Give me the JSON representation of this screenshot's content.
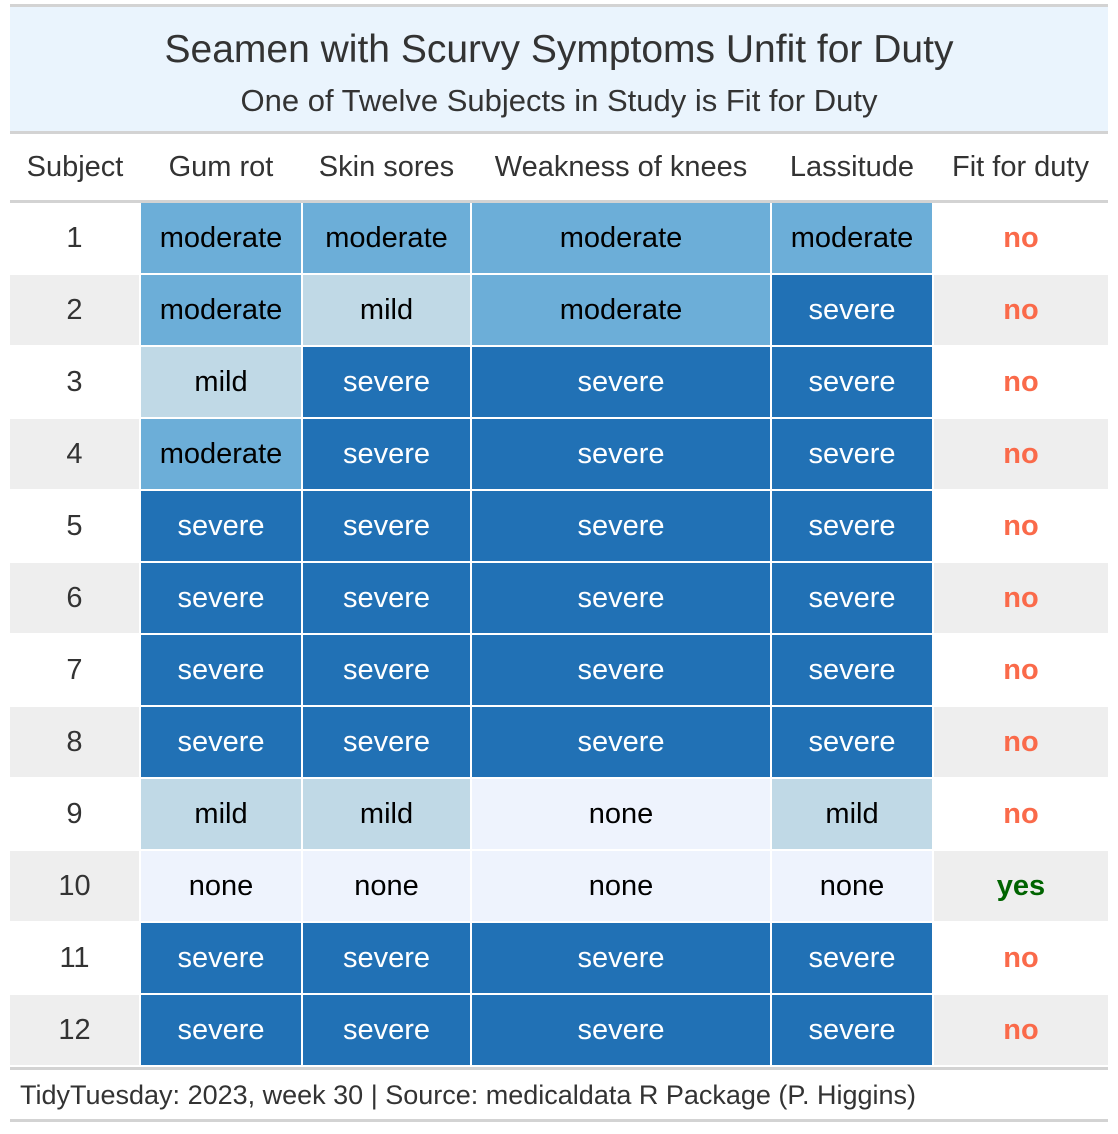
{
  "chart_data": {
    "type": "table",
    "title": "Seamen with Scurvy Symptoms Unfit for Duty",
    "subtitle": "One of Twelve Subjects in Study is Fit for Duty",
    "columns": [
      "Subject",
      "Gum rot",
      "Skin sores",
      "Weakness of knees",
      "Lassitude",
      "Fit for duty"
    ],
    "rows": [
      [
        "1",
        "moderate",
        "moderate",
        "moderate",
        "moderate",
        "no"
      ],
      [
        "2",
        "moderate",
        "mild",
        "moderate",
        "severe",
        "no"
      ],
      [
        "3",
        "mild",
        "severe",
        "severe",
        "severe",
        "no"
      ],
      [
        "4",
        "moderate",
        "severe",
        "severe",
        "severe",
        "no"
      ],
      [
        "5",
        "severe",
        "severe",
        "severe",
        "severe",
        "no"
      ],
      [
        "6",
        "severe",
        "severe",
        "severe",
        "severe",
        "no"
      ],
      [
        "7",
        "severe",
        "severe",
        "severe",
        "severe",
        "no"
      ],
      [
        "8",
        "severe",
        "severe",
        "severe",
        "severe",
        "no"
      ],
      [
        "9",
        "mild",
        "mild",
        "none",
        "mild",
        "no"
      ],
      [
        "10",
        "none",
        "none",
        "none",
        "none",
        "yes"
      ],
      [
        "11",
        "severe",
        "severe",
        "severe",
        "severe",
        "no"
      ],
      [
        "12",
        "severe",
        "severe",
        "severe",
        "severe",
        "no"
      ]
    ],
    "severity_colors": {
      "none": {
        "bg": "#eef3fd",
        "fg": "#000000"
      },
      "mild": {
        "bg": "#c0d9e6",
        "fg": "#000000"
      },
      "moderate": {
        "bg": "#6caed8",
        "fg": "#000000"
      },
      "severe": {
        "bg": "#2171b5",
        "fg": "#ffffff"
      }
    },
    "fit_colors": {
      "no": "#fa6a4a",
      "yes": "#006400"
    },
    "header_background": "#eaf4fd",
    "stripe_background": "#eeeeee"
  },
  "footer": "TidyTuesday: 2023, week 30 | Source: medicaldata R Package (P. Higgins)"
}
